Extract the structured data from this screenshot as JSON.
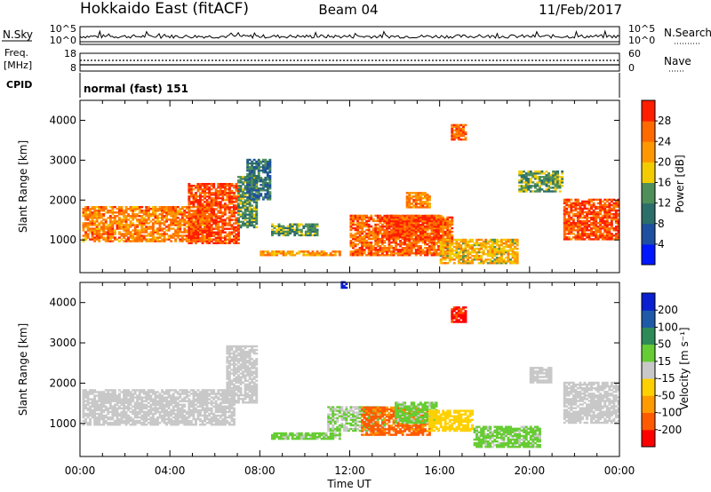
{
  "header": {
    "station": "Hokkaido East (fitACF)",
    "beam": "Beam 04",
    "date": "11/Feb/2017"
  },
  "nsky_panel": {
    "left_label": "N.Sky",
    "ticks_left": [
      "10^5",
      "10^0"
    ],
    "ticks_right": [
      "10^5",
      "10^0"
    ],
    "right_label": "N.Search"
  },
  "freq_panel": {
    "left_label_1": "Freq.",
    "left_label_2": "[MHz]",
    "ticks_left": [
      "18",
      "8"
    ],
    "ticks_right": [
      "60",
      "0"
    ],
    "right_label": "Nave"
  },
  "cpid_panel": {
    "left_label": "CPID",
    "mode_text": "normal (fast) 151"
  },
  "x_axis": {
    "label": "Time UT",
    "ticks": [
      "00:00",
      "04:00",
      "08:00",
      "12:00",
      "16:00",
      "20:00",
      "00:00"
    ],
    "range_hours": [
      0,
      24
    ]
  },
  "colors": {
    "power": [
      "#0018ff",
      "#1f4fa0",
      "#2c6e6a",
      "#4f8f5a",
      "#f2cc00",
      "#ff9800",
      "#ff6a00",
      "#ff1e00"
    ],
    "velocity": [
      "#ff0000",
      "#ff5a00",
      "#ff9a00",
      "#ffd000",
      "#c8c8c8",
      "#66cc33",
      "#2e8b57",
      "#1f5aa8",
      "#0a1fd0"
    ]
  },
  "chart_data": [
    {
      "type": "heatmap",
      "name": "power",
      "ylabel": "Slant Range [km]",
      "xlabel": "",
      "xlim": [
        0,
        24
      ],
      "ylim": [
        180,
        4500
      ],
      "yticks": [
        "1000",
        "2000",
        "3000",
        "4000"
      ],
      "colorbar": {
        "label": "Power [dB]",
        "ticks": [
          "4",
          "8",
          "12",
          "16",
          "20",
          "24",
          "28"
        ],
        "range": [
          0,
          32
        ]
      },
      "echo_regions": [
        {
          "t0": 0.1,
          "t1": 5.8,
          "r0": 950,
          "r1": 1850,
          "value": 24
        },
        {
          "t0": 4.8,
          "t1": 7.0,
          "r0": 900,
          "r1": 2400,
          "value": 28
        },
        {
          "t0": 7.0,
          "t1": 7.8,
          "r0": 1300,
          "r1": 2600,
          "value": 14
        },
        {
          "t0": 7.4,
          "t1": 8.4,
          "r0": 2000,
          "r1": 3000,
          "value": 10
        },
        {
          "t0": 8.5,
          "t1": 10.5,
          "r0": 1100,
          "r1": 1400,
          "value": 14
        },
        {
          "t0": 8.0,
          "t1": 11.5,
          "r0": 600,
          "r1": 700,
          "value": 22
        },
        {
          "t0": 12.0,
          "t1": 16.5,
          "r0": 600,
          "r1": 1600,
          "value": 26
        },
        {
          "t0": 13.5,
          "t1": 16.0,
          "r0": 1000,
          "r1": 1600,
          "value": 28
        },
        {
          "t0": 14.5,
          "t1": 15.5,
          "r0": 1800,
          "r1": 2200,
          "value": 24
        },
        {
          "t0": 16.5,
          "t1": 17.2,
          "r0": 3500,
          "r1": 3900,
          "value": 26
        },
        {
          "t0": 16.0,
          "t1": 19.5,
          "r0": 400,
          "r1": 1000,
          "value": 20
        },
        {
          "t0": 19.5,
          "t1": 21.5,
          "r0": 2200,
          "r1": 2700,
          "value": 14
        },
        {
          "t0": 21.5,
          "t1": 24.0,
          "r0": 1000,
          "r1": 2000,
          "value": 28
        }
      ]
    },
    {
      "type": "heatmap",
      "name": "velocity",
      "ylabel": "Slant Range [km]",
      "xlabel": "Time UT",
      "xlim": [
        0,
        24
      ],
      "ylim": [
        180,
        4500
      ],
      "yticks": [
        "1000",
        "2000",
        "3000",
        "4000"
      ],
      "colorbar": {
        "label": "Velocity [m s⁻¹]",
        "ticks": [
          "-200",
          "-100",
          "-50",
          "-15",
          "15",
          "50",
          "100",
          "200"
        ],
        "range": [
          -250,
          250
        ]
      },
      "echo_regions": [
        {
          "t0": 0.1,
          "t1": 6.8,
          "r0": 950,
          "r1": 1850,
          "value": 0
        },
        {
          "t0": 6.5,
          "t1": 7.8,
          "r0": 1500,
          "r1": 2900,
          "value": 0
        },
        {
          "t0": 8.5,
          "t1": 11.5,
          "r0": 600,
          "r1": 750,
          "value": 40
        },
        {
          "t0": 11.0,
          "t1": 13.5,
          "r0": 800,
          "r1": 1400,
          "value": 30
        },
        {
          "t0": 12.5,
          "t1": 15.5,
          "r0": 700,
          "r1": 1400,
          "value": -150
        },
        {
          "t0": 14.0,
          "t1": 15.8,
          "r0": 1000,
          "r1": 1500,
          "value": 40
        },
        {
          "t0": 15.5,
          "t1": 17.5,
          "r0": 800,
          "r1": 1300,
          "value": -60
        },
        {
          "t0": 16.5,
          "t1": 17.2,
          "r0": 3500,
          "r1": 3900,
          "value": -200
        },
        {
          "t0": 17.5,
          "t1": 20.5,
          "r0": 400,
          "r1": 900,
          "value": 40
        },
        {
          "t0": 20.0,
          "t1": 21.0,
          "r0": 2000,
          "r1": 2400,
          "value": 0
        },
        {
          "t0": 21.5,
          "t1": 24.0,
          "r0": 1000,
          "r1": 2000,
          "value": 0
        },
        {
          "t0": 11.6,
          "t1": 11.8,
          "r0": 4350,
          "r1": 4500,
          "value": 220
        }
      ]
    }
  ]
}
